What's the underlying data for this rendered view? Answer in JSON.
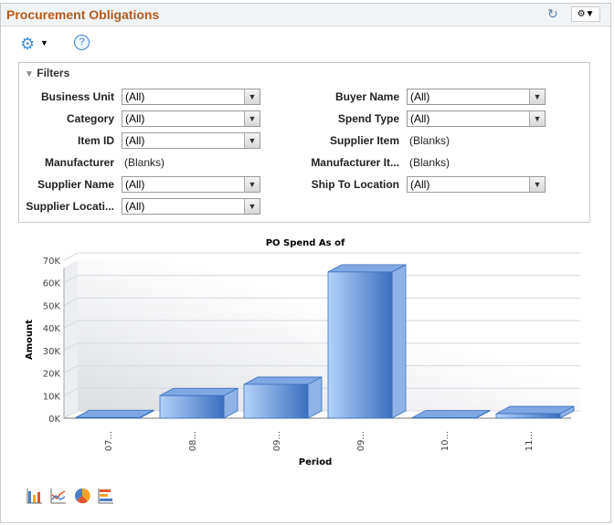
{
  "header": {
    "title": "Procurement Obligations",
    "refresh_icon": "refresh-icon",
    "settings_icon": "gear-dropdown-icon"
  },
  "toolbar": {
    "options_icon": "gear-icon",
    "help_label": "?"
  },
  "filters": {
    "title": "Filters",
    "left": [
      {
        "label": "Business Unit",
        "value": "(All)",
        "type": "select"
      },
      {
        "label": "Category",
        "value": "(All)",
        "type": "select"
      },
      {
        "label": "Item ID",
        "value": "(All)",
        "type": "select"
      },
      {
        "label": "Manufacturer",
        "value": "(Blanks)",
        "type": "text"
      },
      {
        "label": "Supplier Name",
        "value": "(All)",
        "type": "select"
      },
      {
        "label": "Supplier Locati...",
        "value": "(All)",
        "type": "select"
      }
    ],
    "right": [
      {
        "label": "Buyer Name",
        "value": "(All)",
        "type": "select"
      },
      {
        "label": "Spend Type",
        "value": "(All)",
        "type": "select"
      },
      {
        "label": "Supplier Item",
        "value": "(Blanks)",
        "type": "text"
      },
      {
        "label": "Manufacturer It...",
        "value": "(Blanks)",
        "type": "text"
      },
      {
        "label": "Ship To Location",
        "value": "(All)",
        "type": "select"
      }
    ]
  },
  "chart_data": {
    "type": "bar",
    "title": "PO Spend As of",
    "xlabel": "Period",
    "ylabel": "Amount",
    "categories": [
      "07...",
      "08...",
      "09...",
      "09...",
      "10...",
      "11..."
    ],
    "values": [
      300,
      10000,
      15000,
      64800,
      200,
      2000
    ],
    "ylim": [
      0,
      70000
    ],
    "yticks": [
      "0K",
      "10K",
      "20K",
      "30K",
      "40K",
      "50K",
      "60K",
      "70K"
    ],
    "grid": true,
    "style": "3d",
    "color": "#4a7fc8"
  },
  "chart_types": [
    "bar-chart-icon",
    "line-chart-icon",
    "pie-chart-icon",
    "horizontal-bar-chart-icon"
  ]
}
